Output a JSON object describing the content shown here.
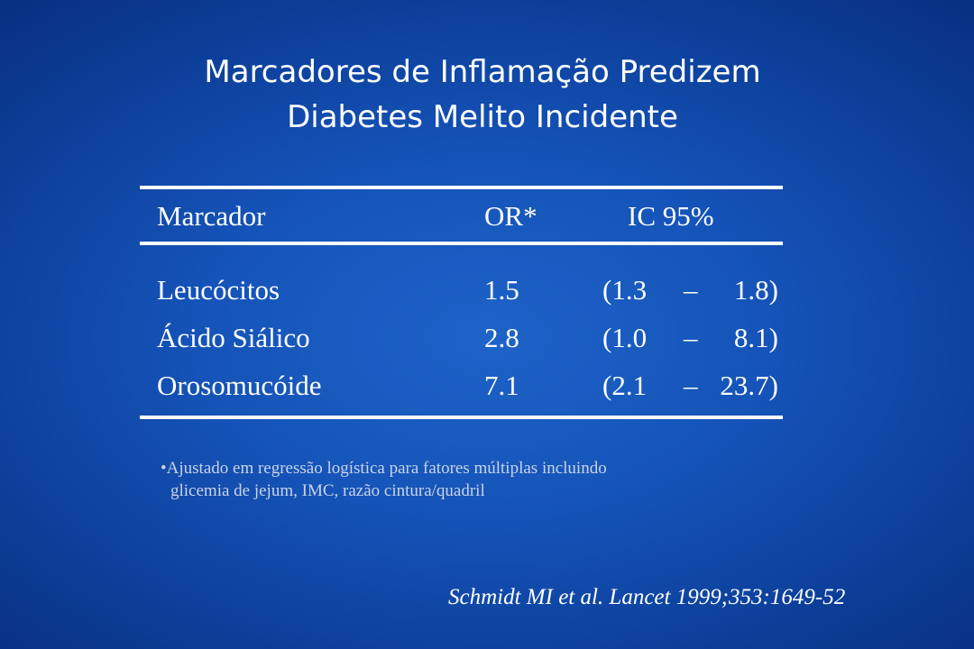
{
  "slide": {
    "title_line1": "Marcadores de Inflamação Predizem",
    "title_line2": "Diabetes Melito Incidente"
  },
  "table": {
    "headers": {
      "marker": "Marcador",
      "or": "OR*",
      "ci": "IC 95%"
    },
    "rows": [
      {
        "marker": "Leucócitos",
        "or": "1.5",
        "ci_open": "(1.3",
        "ci_dash": "–",
        "ci_close": "1.8)"
      },
      {
        "marker": "Ácido Siálico",
        "or": "2.8",
        "ci_open": "(1.0",
        "ci_dash": "–",
        "ci_close": "8.1)"
      },
      {
        "marker": "Orosomucóide",
        "or": "7.1",
        "ci_open": "(2.1",
        "ci_dash": "–",
        "ci_close": "23.7)"
      }
    ]
  },
  "footnote": {
    "line1": "•Ajustado em regressão logística para fatores múltiplas incluindo",
    "line2": "glicemia de jejum, IMC, razão cintura/quadril"
  },
  "citation": "Schmidt MI et al. Lancet 1999;353:1649-52"
}
